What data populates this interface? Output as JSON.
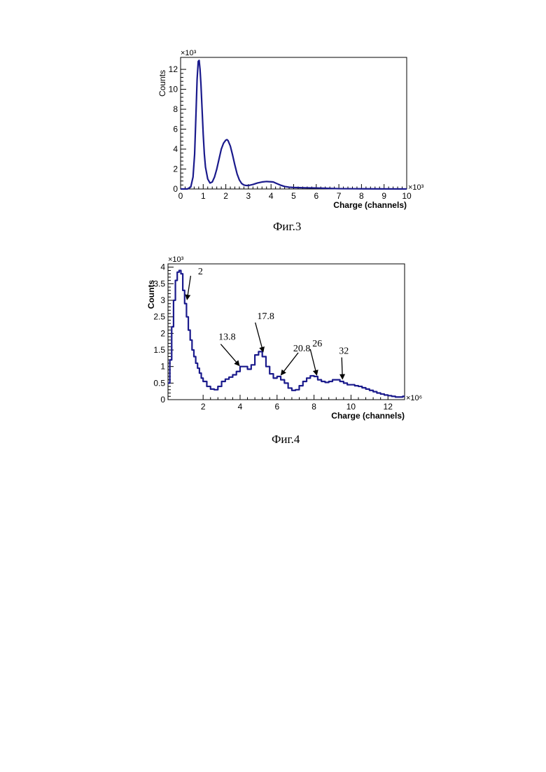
{
  "chart_data": [
    {
      "type": "line",
      "caption": "Фиг.3",
      "xlabel": "Charge (channels)",
      "ylabel": "Counts",
      "x_multiplier": "×10³",
      "y_multiplier": "×10³",
      "xlim": [
        0,
        10
      ],
      "ylim": [
        0,
        13.2
      ],
      "xticks": [
        0,
        1,
        2,
        3,
        4,
        5,
        6,
        7,
        8,
        9,
        10
      ],
      "yticks": [
        0,
        2,
        4,
        6,
        8,
        10,
        12
      ],
      "grid": false,
      "series": [
        {
          "color": "#1a1a8c",
          "x": [
            0.0,
            0.3,
            0.45,
            0.55,
            0.62,
            0.68,
            0.73,
            0.78,
            0.82,
            0.86,
            0.9,
            0.95,
            1.0,
            1.05,
            1.1,
            1.2,
            1.3,
            1.4,
            1.5,
            1.6,
            1.7,
            1.8,
            1.9,
            2.0,
            2.05,
            2.1,
            2.2,
            2.3,
            2.4,
            2.5,
            2.6,
            2.7,
            2.8,
            2.9,
            3.0,
            3.2,
            3.4,
            3.6,
            3.8,
            4.0,
            4.1,
            4.2,
            4.4,
            4.6,
            4.8,
            5.0,
            5.5,
            6.0,
            6.5,
            7.0,
            8.0,
            9.0,
            10.0
          ],
          "y": [
            0.0,
            0.0,
            0.2,
            1.2,
            3.5,
            7.5,
            11.0,
            12.8,
            12.9,
            12.0,
            10.5,
            8.0,
            5.5,
            3.5,
            2.2,
            1.0,
            0.6,
            0.7,
            1.2,
            2.0,
            3.0,
            4.0,
            4.6,
            4.9,
            4.95,
            4.85,
            4.3,
            3.4,
            2.4,
            1.5,
            0.9,
            0.55,
            0.4,
            0.35,
            0.35,
            0.45,
            0.6,
            0.7,
            0.75,
            0.72,
            0.7,
            0.6,
            0.4,
            0.25,
            0.18,
            0.15,
            0.12,
            0.1,
            0.06,
            0.03,
            0.02,
            0.01,
            0.0
          ]
        }
      ]
    },
    {
      "type": "line",
      "caption": "Фиг.4",
      "xlabel": "Charge (channels)",
      "ylabel": "Counts",
      "x_multiplier": "×10⁶",
      "y_multiplier": "×10³",
      "xlim": [
        0.1,
        12.9
      ],
      "ylim": [
        0,
        4.1
      ],
      "xticks": [
        2,
        4,
        6,
        8,
        10,
        12
      ],
      "yticks": [
        0,
        0.5,
        1,
        1.5,
        2,
        2.5,
        3,
        3.5,
        4
      ],
      "ytick_labels": [
        "0",
        "0.5",
        "1",
        "1.5",
        "2",
        "2.5",
        "3",
        "3.5",
        "4"
      ],
      "grid": false,
      "series": [
        {
          "color": "#1a1a8c",
          "step": true,
          "x": [
            0.1,
            0.2,
            0.3,
            0.4,
            0.5,
            0.6,
            0.7,
            0.8,
            0.9,
            1.0,
            1.1,
            1.2,
            1.3,
            1.4,
            1.5,
            1.6,
            1.7,
            1.8,
            1.9,
            2.0,
            2.2,
            2.4,
            2.6,
            2.8,
            3.0,
            3.2,
            3.4,
            3.6,
            3.8,
            4.0,
            4.2,
            4.4,
            4.6,
            4.8,
            5.0,
            5.2,
            5.4,
            5.6,
            5.8,
            6.0,
            6.2,
            6.4,
            6.6,
            6.8,
            7.0,
            7.2,
            7.4,
            7.6,
            7.8,
            8.0,
            8.2,
            8.4,
            8.6,
            8.8,
            9.0,
            9.2,
            9.4,
            9.6,
            9.8,
            10.0,
            10.2,
            10.4,
            10.6,
            10.8,
            11.0,
            11.2,
            11.4,
            11.6,
            11.8,
            12.0,
            12.2,
            12.4,
            12.6,
            12.8
          ],
          "y": [
            0.5,
            1.2,
            2.2,
            3.0,
            3.6,
            3.85,
            3.9,
            3.8,
            3.3,
            2.9,
            2.5,
            2.1,
            1.8,
            1.5,
            1.3,
            1.1,
            0.95,
            0.8,
            0.65,
            0.55,
            0.4,
            0.32,
            0.3,
            0.4,
            0.55,
            0.62,
            0.68,
            0.75,
            0.85,
            1.0,
            1.0,
            0.92,
            1.05,
            1.35,
            1.45,
            1.3,
            1.0,
            0.78,
            0.65,
            0.7,
            0.6,
            0.5,
            0.35,
            0.28,
            0.3,
            0.42,
            0.55,
            0.65,
            0.72,
            0.7,
            0.6,
            0.55,
            0.52,
            0.55,
            0.6,
            0.6,
            0.55,
            0.5,
            0.45,
            0.45,
            0.42,
            0.4,
            0.36,
            0.32,
            0.28,
            0.24,
            0.2,
            0.17,
            0.14,
            0.12,
            0.1,
            0.08,
            0.08,
            0.1
          ]
        }
      ],
      "annotations": [
        {
          "label": "2",
          "x": 1.1,
          "y": 3.0
        },
        {
          "label": "13.8",
          "x": 3.9,
          "y": 1.0
        },
        {
          "label": "17.8",
          "x": 5.2,
          "y": 1.42
        },
        {
          "label": "20.8",
          "x": 6.2,
          "y": 0.72
        },
        {
          "label": "26",
          "x": 8.1,
          "y": 0.72
        },
        {
          "label": "32",
          "x": 9.5,
          "y": 0.6
        }
      ]
    }
  ]
}
